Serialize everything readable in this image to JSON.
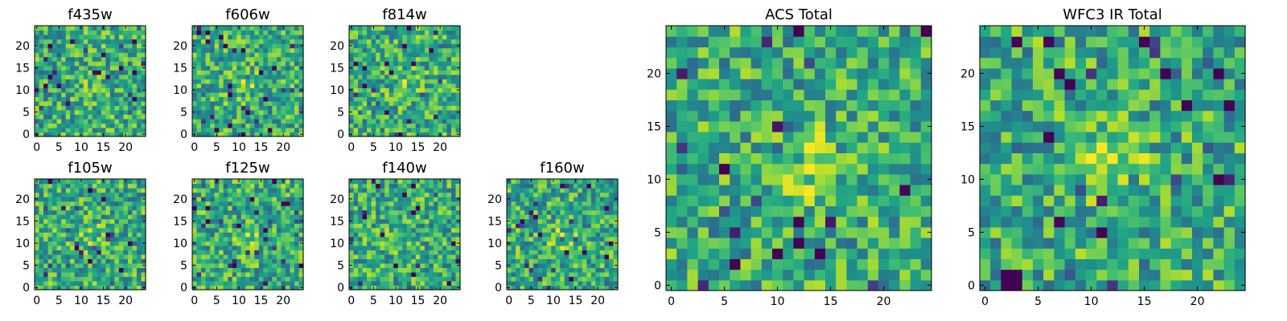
{
  "figure": {
    "colormap": "viridis",
    "colors": [
      "#440154",
      "#3b528b",
      "#21918c",
      "#5ec962",
      "#fde725"
    ]
  },
  "chart_data": [
    {
      "type": "heatmap",
      "title": "f435w",
      "grid_size": 25,
      "xlim": [
        -0.5,
        24.5
      ],
      "ylim": [
        -0.5,
        24.5
      ],
      "xticks": [
        0,
        5,
        10,
        15,
        20
      ],
      "yticks": [
        0,
        5,
        10,
        15,
        20
      ],
      "values_note": "25x25 pixel cutout of noisy flux values (individual pixel values not labeled)"
    },
    {
      "type": "heatmap",
      "title": "f606w",
      "grid_size": 25,
      "xlim": [
        -0.5,
        24.5
      ],
      "ylim": [
        -0.5,
        24.5
      ],
      "xticks": [
        0,
        5,
        10,
        15,
        20
      ],
      "yticks": [
        0,
        5,
        10,
        15,
        20
      ],
      "values_note": "25x25 pixel cutout of noisy flux values (individual pixel values not labeled)"
    },
    {
      "type": "heatmap",
      "title": "f814w",
      "grid_size": 25,
      "xlim": [
        -0.5,
        24.5
      ],
      "ylim": [
        -0.5,
        24.5
      ],
      "xticks": [
        0,
        5,
        10,
        15,
        20
      ],
      "yticks": [
        0,
        5,
        10,
        15,
        20
      ],
      "values_note": "25x25 pixel cutout of noisy flux values (individual pixel values not labeled)"
    },
    {
      "type": "heatmap",
      "title": "f105w",
      "grid_size": 25,
      "xlim": [
        -0.5,
        24.5
      ],
      "ylim": [
        -0.5,
        24.5
      ],
      "xticks": [
        0,
        5,
        10,
        15,
        20
      ],
      "yticks": [
        0,
        5,
        10,
        15,
        20
      ],
      "values_note": "25x25 pixel cutout of noisy flux values (individual pixel values not labeled)"
    },
    {
      "type": "heatmap",
      "title": "f125w",
      "grid_size": 25,
      "xlim": [
        -0.5,
        24.5
      ],
      "ylim": [
        -0.5,
        24.5
      ],
      "xticks": [
        0,
        5,
        10,
        15,
        20
      ],
      "yticks": [
        0,
        5,
        10,
        15,
        20
      ],
      "values_note": "25x25 pixel cutout of noisy flux values (individual pixel values not labeled)"
    },
    {
      "type": "heatmap",
      "title": "f140w",
      "grid_size": 25,
      "xlim": [
        -0.5,
        24.5
      ],
      "ylim": [
        -0.5,
        24.5
      ],
      "xticks": [
        0,
        5,
        10,
        15,
        20
      ],
      "yticks": [
        0,
        5,
        10,
        15,
        20
      ],
      "values_note": "25x25 pixel cutout of noisy flux values (individual pixel values not labeled)"
    },
    {
      "type": "heatmap",
      "title": "f160w",
      "grid_size": 25,
      "xlim": [
        -0.5,
        24.5
      ],
      "ylim": [
        -0.5,
        24.5
      ],
      "xticks": [
        0,
        5,
        10,
        15,
        20
      ],
      "yticks": [
        0,
        5,
        10,
        15,
        20
      ],
      "values_note": "25x25 pixel cutout of noisy flux values (individual pixel values not labeled)"
    },
    {
      "type": "heatmap",
      "title": "ACS Total",
      "grid_size": 25,
      "xlim": [
        -0.5,
        24.5
      ],
      "ylim": [
        -0.5,
        24.5
      ],
      "xticks": [
        0,
        5,
        10,
        15,
        20
      ],
      "yticks": [
        0,
        5,
        10,
        15,
        20
      ],
      "values_note": "25x25 pixel cutout of noisy flux values (individual pixel values not labeled)"
    },
    {
      "type": "heatmap",
      "title": "WFC3 IR Total",
      "grid_size": 25,
      "xlim": [
        -0.5,
        24.5
      ],
      "ylim": [
        -0.5,
        24.5
      ],
      "xticks": [
        0,
        5,
        10,
        15,
        20
      ],
      "yticks": [
        0,
        5,
        10,
        15,
        20
      ],
      "values_note": "25x25 pixel cutout of noisy flux values (individual pixel values not labeled)"
    }
  ]
}
